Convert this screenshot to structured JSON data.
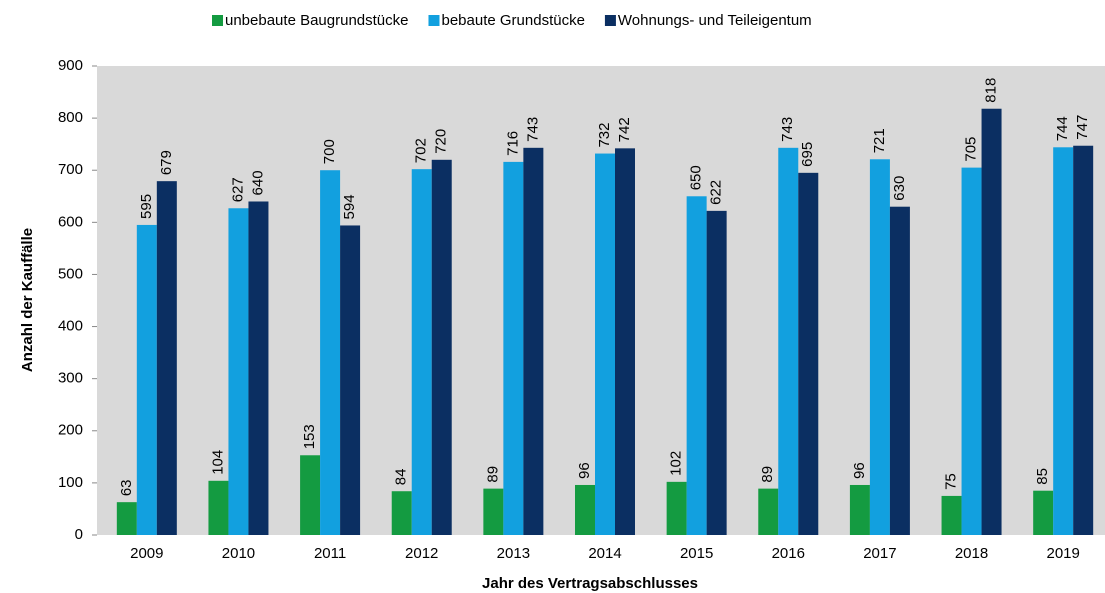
{
  "chart_data": {
    "type": "bar",
    "x_label": "Jahr des Vertragsabschlusses",
    "y_label": "Anzahl der Kauffälle",
    "categories": [
      "2009",
      "2010",
      "2011",
      "2012",
      "2013",
      "2014",
      "2015",
      "2016",
      "2017",
      "2018",
      "2019"
    ],
    "series": [
      {
        "name": "unbebaute Baugrundstücke",
        "color": "#149b41",
        "values": [
          63,
          104,
          153,
          84,
          89,
          96,
          102,
          89,
          96,
          75,
          85
        ]
      },
      {
        "name": "bebaute Grundstücke",
        "color": "#12a0df",
        "values": [
          595,
          627,
          700,
          702,
          716,
          732,
          650,
          743,
          721,
          705,
          744
        ]
      },
      {
        "name": "Wohnungs- und Teileigentum",
        "color": "#0b2f62",
        "values": [
          679,
          640,
          594,
          720,
          743,
          742,
          622,
          695,
          630,
          818,
          747
        ]
      }
    ],
    "ylim": [
      0,
      900
    ],
    "yticks": [
      0,
      100,
      200,
      300,
      400,
      500,
      600,
      700,
      800,
      900
    ],
    "legend": "top",
    "plot_background": "#d9d9d9"
  }
}
